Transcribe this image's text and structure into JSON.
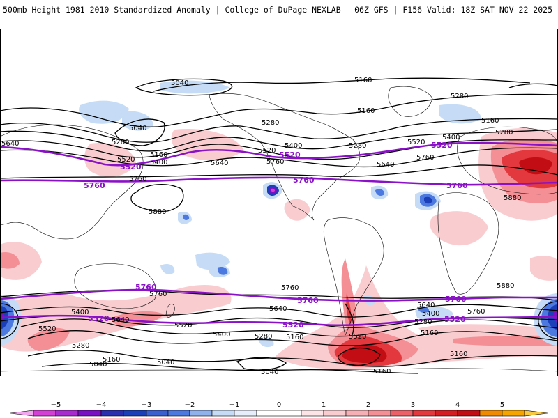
{
  "header": {
    "title_left": "500mb Height 1981–2010 Standardized Anomaly | College of DuPage NEXLAB",
    "title_right": "06Z GFS | F156 Valid: 18Z SAT NOV 22 2025"
  },
  "colors": {
    "neg5": "#d43fd6",
    "neg4": "#7a10c4",
    "neg3": "#1a3fb8",
    "neg2": "#4c79e0",
    "neg1": "#c6dcf6",
    "pos1": "#f9cdd0",
    "pos2": "#f38f95",
    "pos3": "#e3383d",
    "pos4": "#c30d14",
    "pos5": "#f5a400",
    "highlight_contour": "#8a12c6",
    "contour": "#000000"
  },
  "contour_labels": {
    "c5040": "5040",
    "c5160": "5160",
    "c5280": "5280",
    "c5400": "5400",
    "c5520": "5520",
    "c5640": "5640",
    "c5760": "5760",
    "c5880": "5880"
  },
  "legend": {
    "ticks": [
      "−5",
      "−4",
      "−3",
      "−2",
      "−1",
      "0",
      "1",
      "2",
      "3",
      "4",
      "5"
    ]
  }
}
